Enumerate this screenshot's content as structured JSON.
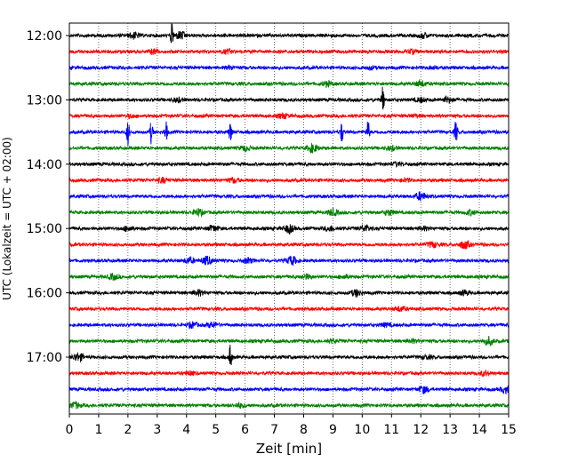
{
  "chart_data": {
    "type": "line",
    "subtype": "helicorder-seismogram",
    "xlabel": "Zeit  [min]",
    "ylabel": "UTC (Lokalzeit = UTC + 02:00)",
    "xlim": [
      0,
      15
    ],
    "x_ticks": [
      "0",
      "1",
      "2",
      "3",
      "4",
      "5",
      "6",
      "7",
      "8",
      "9",
      "10",
      "11",
      "12",
      "13",
      "14",
      "15"
    ],
    "y_tick_labels": [
      "12:00",
      "13:00",
      "14:00",
      "15:00",
      "16:00",
      "17:00"
    ],
    "grid": "vertical dotted at each minute",
    "line_minutes": 15,
    "line_colors": [
      "#000000",
      "#ff0000",
      "#0000ff",
      "#008000"
    ],
    "trace_starts": [
      "12:00",
      "12:15",
      "12:30",
      "12:45",
      "13:00",
      "13:15",
      "13:30",
      "13:45",
      "14:00",
      "14:15",
      "14:30",
      "14:45",
      "15:00",
      "15:15",
      "15:30",
      "15:45",
      "16:00",
      "16:15",
      "16:30",
      "16:45",
      "17:00",
      "17:15",
      "17:30",
      "17:45"
    ],
    "events": [
      [
        [
          2.2,
          0.45
        ],
        [
          3.5,
          0.9
        ],
        [
          3.8,
          0.6
        ],
        [
          12.1,
          0.35
        ]
      ],
      [
        [
          2.9,
          0.35
        ],
        [
          5.4,
          0.25
        ],
        [
          11.7,
          0.25
        ]
      ],
      [
        [
          5.5,
          0.2
        ],
        [
          10.3,
          0.2
        ],
        [
          12.4,
          0.2
        ]
      ],
      [
        [
          8.8,
          0.35
        ],
        [
          12.0,
          0.4
        ]
      ],
      [
        [
          3.7,
          0.3
        ],
        [
          10.7,
          1.0
        ],
        [
          12.0,
          0.3
        ],
        [
          12.9,
          0.4
        ]
      ],
      [
        [
          2.1,
          0.2
        ],
        [
          7.3,
          0.35
        ],
        [
          11.8,
          0.2
        ]
      ],
      [
        [
          2.0,
          1.0
        ],
        [
          2.8,
          0.9
        ],
        [
          3.3,
          0.8
        ],
        [
          5.5,
          0.8
        ],
        [
          9.3,
          0.8
        ],
        [
          10.2,
          0.9
        ],
        [
          13.2,
          0.9
        ]
      ],
      [
        [
          6.0,
          0.35
        ],
        [
          8.3,
          0.6
        ],
        [
          11.0,
          0.3
        ]
      ],
      [
        [
          11.2,
          0.25
        ]
      ],
      [
        [
          3.2,
          0.35
        ],
        [
          5.6,
          0.35
        ],
        [
          11.5,
          0.2
        ]
      ],
      [
        [
          12.0,
          0.6
        ]
      ],
      [
        [
          4.4,
          0.5
        ],
        [
          9.0,
          0.45
        ],
        [
          10.9,
          0.4
        ],
        [
          13.7,
          0.35
        ]
      ],
      [
        [
          2.0,
          0.35
        ],
        [
          4.9,
          0.4
        ],
        [
          7.5,
          0.6
        ],
        [
          8.9,
          0.35
        ],
        [
          10.1,
          0.45
        ],
        [
          12.1,
          0.25
        ]
      ],
      [
        [
          12.4,
          0.4
        ],
        [
          13.5,
          0.55
        ]
      ],
      [
        [
          4.1,
          0.4
        ],
        [
          4.7,
          0.6
        ],
        [
          6.1,
          0.35
        ],
        [
          7.6,
          0.6
        ]
      ],
      [
        [
          1.5,
          0.4
        ],
        [
          8.1,
          0.3
        ],
        [
          9.4,
          0.25
        ]
      ],
      [
        [
          4.4,
          0.4
        ],
        [
          9.8,
          0.5
        ],
        [
          13.5,
          0.35
        ]
      ],
      [
        [
          11.3,
          0.35
        ]
      ],
      [
        [
          4.2,
          0.4
        ],
        [
          4.9,
          0.4
        ],
        [
          10.8,
          0.25
        ]
      ],
      [
        [
          9.0,
          0.25
        ],
        [
          11.7,
          0.25
        ],
        [
          14.3,
          0.6
        ]
      ],
      [
        [
          0.3,
          0.6
        ],
        [
          5.5,
          1.0
        ],
        [
          12.2,
          0.25
        ]
      ],
      [
        [
          4.1,
          0.25
        ],
        [
          14.2,
          0.3
        ]
      ],
      [
        [
          12.1,
          0.5
        ],
        [
          14.9,
          0.5
        ]
      ],
      [
        [
          0.2,
          0.45
        ],
        [
          5.8,
          0.35
        ]
      ]
    ]
  }
}
